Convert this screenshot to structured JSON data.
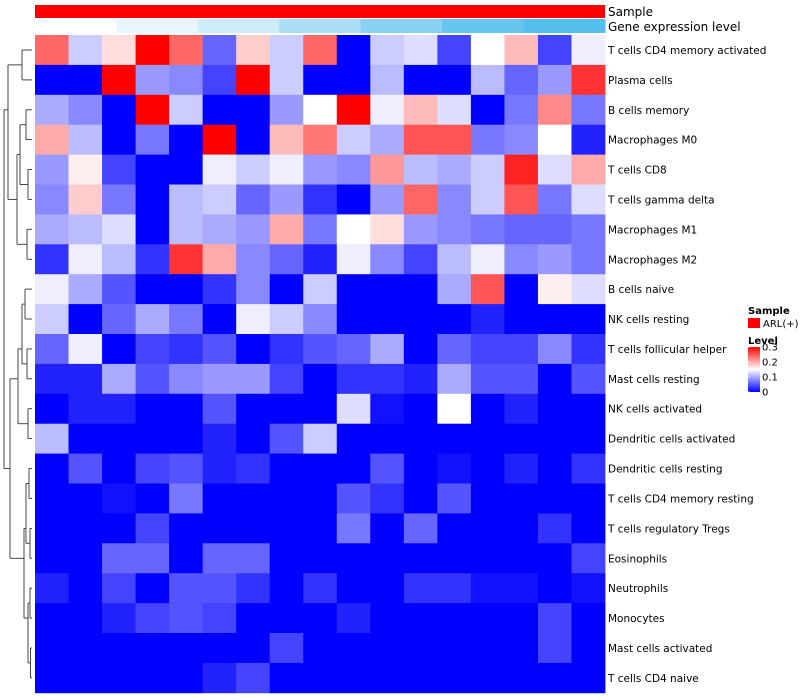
{
  "chart_data": {
    "type": "heatmap",
    "annotation_tracks": [
      {
        "name": "Sample",
        "color": "#ff0000"
      },
      {
        "name": "Gene expression level",
        "colors": [
          "#ffffff",
          "#e8f6fd",
          "#ccecf9",
          "#a9def5",
          "#87d2f2",
          "#66c6ee",
          "#52bfec"
        ]
      }
    ],
    "rows": [
      "T cells CD4 memory activated",
      "Plasma cells",
      "B cells memory",
      "Macrophages M0",
      "T cells CD8",
      "T cells gamma delta",
      "Macrophages M1",
      "Macrophages M2",
      "B cells naive",
      "NK cells resting",
      "T cells follicular helper",
      "Mast cells resting",
      "NK cells activated",
      "Dendritic cells activated",
      "Dendritic cells resting",
      "T cells CD4 memory resting",
      "T cells regulatory  Tregs",
      "Eosinophils",
      "Neutrophils",
      "Monocytes",
      "Mast cells activated",
      "T cells CD4 naive"
    ],
    "n_columns": 17,
    "values": [
      [
        0.24,
        0.12,
        0.17,
        0.3,
        0.24,
        0.06,
        0.18,
        0.12,
        0.24,
        0.0,
        0.12,
        0.13,
        0.04,
        0.15,
        0.19,
        0.04,
        0.14
      ],
      [
        0.0,
        0.0,
        0.3,
        0.09,
        0.08,
        0.04,
        0.3,
        0.12,
        0.0,
        0.0,
        0.11,
        0.0,
        0.0,
        0.11,
        0.06,
        0.09,
        0.27
      ],
      [
        0.1,
        0.08,
        0.0,
        0.3,
        0.12,
        0.0,
        0.0,
        0.09,
        0.15,
        0.3,
        0.14,
        0.19,
        0.13,
        0.0,
        0.07,
        0.22,
        0.07
      ],
      [
        0.2,
        0.11,
        0.0,
        0.07,
        0.0,
        0.3,
        0.0,
        0.19,
        0.23,
        0.12,
        0.1,
        0.25,
        0.25,
        0.07,
        0.08,
        0.15,
        0.02
      ],
      [
        0.09,
        0.16,
        0.04,
        0.0,
        0.0,
        0.14,
        0.12,
        0.14,
        0.09,
        0.08,
        0.21,
        0.11,
        0.1,
        0.12,
        0.28,
        0.13,
        0.2
      ],
      [
        0.08,
        0.18,
        0.07,
        0.0,
        0.11,
        0.12,
        0.06,
        0.09,
        0.03,
        0.0,
        0.09,
        0.24,
        0.08,
        0.12,
        0.25,
        0.07,
        0.13
      ],
      [
        0.1,
        0.11,
        0.13,
        0.0,
        0.11,
        0.1,
        0.09,
        0.2,
        0.07,
        0.15,
        0.17,
        0.09,
        0.08,
        0.07,
        0.06,
        0.06,
        0.07
      ],
      [
        0.03,
        0.14,
        0.11,
        0.03,
        0.27,
        0.2,
        0.08,
        0.06,
        0.02,
        0.14,
        0.08,
        0.04,
        0.11,
        0.14,
        0.08,
        0.09,
        0.07
      ],
      [
        0.14,
        0.1,
        0.05,
        0.0,
        0.0,
        0.03,
        0.08,
        0.0,
        0.12,
        0.0,
        0.0,
        0.0,
        0.1,
        0.25,
        0.0,
        0.16,
        0.13
      ],
      [
        0.12,
        0.0,
        0.06,
        0.1,
        0.07,
        0.0,
        0.14,
        0.12,
        0.08,
        0.0,
        0.0,
        0.0,
        0.0,
        0.02,
        0.0,
        0.0,
        0.0
      ],
      [
        0.06,
        0.14,
        0.0,
        0.04,
        0.03,
        0.05,
        0.0,
        0.03,
        0.05,
        0.06,
        0.1,
        0.0,
        0.06,
        0.04,
        0.04,
        0.08,
        0.03
      ],
      [
        0.02,
        0.02,
        0.1,
        0.05,
        0.08,
        0.09,
        0.09,
        0.04,
        0.0,
        0.03,
        0.03,
        0.02,
        0.1,
        0.05,
        0.05,
        0.0,
        0.05
      ],
      [
        0.0,
        0.02,
        0.02,
        0.0,
        0.0,
        0.05,
        0.0,
        0.0,
        0.0,
        0.13,
        0.01,
        0.0,
        0.15,
        0.0,
        0.02,
        0.0,
        0.0
      ],
      [
        0.11,
        0.0,
        0.0,
        0.0,
        0.0,
        0.02,
        0.0,
        0.05,
        0.12,
        0.0,
        0.0,
        0.0,
        0.0,
        0.0,
        0.0,
        0.0,
        0.0
      ],
      [
        0.0,
        0.05,
        0.0,
        0.04,
        0.05,
        0.02,
        0.03,
        0.0,
        0.0,
        0.0,
        0.05,
        0.0,
        0.01,
        0.0,
        0.02,
        0.0,
        0.03
      ],
      [
        0.0,
        0.0,
        0.01,
        0.0,
        0.07,
        0.0,
        0.0,
        0.0,
        0.0,
        0.05,
        0.03,
        0.0,
        0.05,
        0.0,
        0.0,
        0.0,
        0.0
      ],
      [
        0.0,
        0.0,
        0.0,
        0.04,
        0.0,
        0.0,
        0.0,
        0.0,
        0.0,
        0.07,
        0.0,
        0.06,
        0.0,
        0.0,
        0.0,
        0.03,
        0.0
      ],
      [
        0.0,
        0.0,
        0.06,
        0.06,
        0.0,
        0.06,
        0.06,
        0.0,
        0.0,
        0.0,
        0.0,
        0.0,
        0.0,
        0.0,
        0.0,
        0.0,
        0.04
      ],
      [
        0.02,
        0.0,
        0.04,
        0.0,
        0.05,
        0.05,
        0.03,
        0.0,
        0.03,
        0.0,
        0.0,
        0.03,
        0.03,
        0.01,
        0.01,
        0.0,
        0.01
      ],
      [
        0.0,
        0.0,
        0.02,
        0.04,
        0.05,
        0.04,
        0.0,
        0.0,
        0.0,
        0.02,
        0.0,
        0.0,
        0.0,
        0.0,
        0.0,
        0.04,
        0.0
      ],
      [
        0.0,
        0.0,
        0.0,
        0.0,
        0.0,
        0.0,
        0.0,
        0.04,
        0.0,
        0.0,
        0.0,
        0.0,
        0.0,
        0.0,
        0.0,
        0.04,
        0.0
      ],
      [
        0.0,
        0.0,
        0.0,
        0.0,
        0.0,
        0.02,
        0.04,
        0.0,
        0.0,
        0.0,
        0.0,
        0.0,
        0.0,
        0.0,
        0.0,
        0.0,
        0.0
      ]
    ],
    "color_scale": {
      "min": 0,
      "max": 0.3,
      "colors": [
        "#0000ff",
        "#ffffff",
        "#ff0000"
      ]
    },
    "legend": {
      "sample_title": "Sample",
      "sample_entry": "ARL(+)",
      "sample_color": "#ff0000",
      "level_title": "Level",
      "ticks": [
        0.3,
        0.2,
        0.1,
        0
      ],
      "tick_labels": [
        "0.3",
        "0.2",
        "0.1",
        "0"
      ]
    },
    "dendrogram": "row (left side)",
    "legend_position": "right"
  }
}
